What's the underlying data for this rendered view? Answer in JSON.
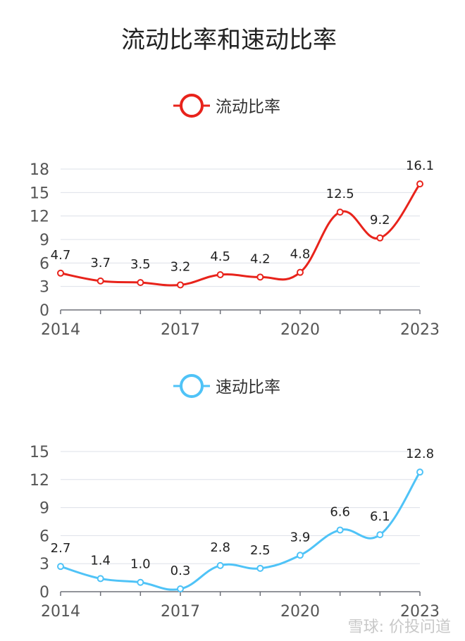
{
  "title": "流动比率和速动比率",
  "watermark": "雪球: 价投问道",
  "chart_data": [
    {
      "type": "line",
      "legend": "流动比率",
      "color": "#e8231b",
      "x": [
        2014,
        2015,
        2016,
        2017,
        2018,
        2019,
        2020,
        2021,
        2022,
        2023
      ],
      "values": [
        4.7,
        3.7,
        3.5,
        3.2,
        4.5,
        4.2,
        4.8,
        12.5,
        9.2,
        16.1
      ],
      "labels": [
        "4.7",
        "3.7",
        "3.5",
        "3.2",
        "4.5",
        "4.2",
        "4.8",
        "12.5",
        "9.2",
        "16.1"
      ],
      "yticks": [
        "0",
        "3",
        "6",
        "9",
        "12",
        "15",
        "18"
      ],
      "ylim": [
        0,
        18
      ],
      "xticks": [
        "2014",
        "2017",
        "2020",
        "2023"
      ],
      "grid": true,
      "legend_position": "top"
    },
    {
      "type": "line",
      "legend": "速动比率",
      "color": "#4fc3f7",
      "x": [
        2014,
        2015,
        2016,
        2017,
        2018,
        2019,
        2020,
        2021,
        2022,
        2023
      ],
      "values": [
        2.7,
        1.4,
        1.0,
        0.3,
        2.8,
        2.5,
        3.9,
        6.6,
        6.1,
        12.8
      ],
      "labels": [
        "2.7",
        "1.4",
        "1.0",
        "0.3",
        "2.8",
        "2.5",
        "3.9",
        "6.6",
        "6.1",
        "12.8"
      ],
      "yticks": [
        "0",
        "3",
        "6",
        "9",
        "12",
        "15"
      ],
      "ylim": [
        0,
        15
      ],
      "xticks": [
        "2014",
        "2017",
        "2020",
        "2023"
      ],
      "grid": true,
      "legend_position": "top"
    }
  ]
}
